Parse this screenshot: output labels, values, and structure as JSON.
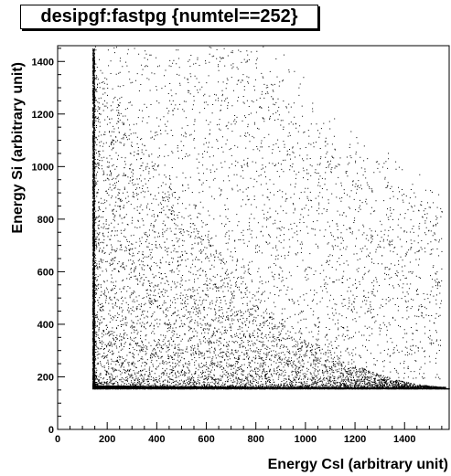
{
  "chart_data": {
    "type": "scatter",
    "title": "desipgf:fastpg {numtel==252}",
    "xlabel": "Energy CsI (arbitrary unit)",
    "ylabel": "Energy Si (arbitrary unit)",
    "xlim": [
      0,
      1580
    ],
    "ylim": [
      0,
      1460
    ],
    "x_ticks": [
      0,
      200,
      400,
      600,
      800,
      1000,
      1200,
      1400
    ],
    "y_ticks": [
      0,
      200,
      400,
      600,
      800,
      1000,
      1200,
      1400
    ],
    "grid": false,
    "point_color": "#000000",
    "series": [
      {
        "description_points": [
          {
            "x": 140,
            "y": 1450
          },
          {
            "x": 140,
            "y": 1000
          },
          {
            "x": 140,
            "y": 600
          },
          {
            "x": 140,
            "y": 160
          },
          {
            "x": 300,
            "y": 165
          },
          {
            "x": 600,
            "y": 160
          },
          {
            "x": 900,
            "y": 160
          },
          {
            "x": 1200,
            "y": 158
          },
          {
            "x": 1500,
            "y": 155
          },
          {
            "x": 400,
            "y": 900
          },
          {
            "x": 700,
            "y": 600
          },
          {
            "x": 1000,
            "y": 400
          },
          {
            "x": 1300,
            "y": 250
          }
        ]
      }
    ]
  }
}
